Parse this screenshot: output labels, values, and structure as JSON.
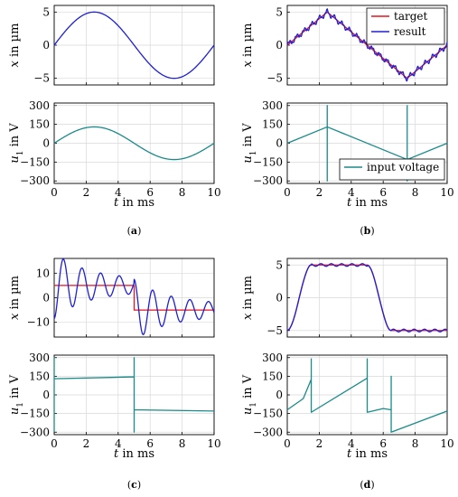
{
  "colors": {
    "blue": "#1f1fd6",
    "red": "#e8141a",
    "teal": "#1a8a8a"
  },
  "x_axis": {
    "label": "t in ms",
    "ticks": [
      "0",
      "2",
      "4",
      "6",
      "8",
      "10"
    ],
    "range": [
      0,
      10
    ]
  },
  "chart_data": [
    {
      "panel": "a",
      "caption": "(a)",
      "top": {
        "type": "line",
        "ylabel": "x in µm",
        "ylim": [
          -6,
          6
        ],
        "yticks": [
          "5",
          "0",
          "−5"
        ],
        "ytick_values": [
          5,
          0,
          -5
        ],
        "series": [
          {
            "color": "#1f1fd6",
            "shape": "sine",
            "amplitude": 5,
            "period": 10
          }
        ]
      },
      "bottom": {
        "type": "line",
        "ylabel": "u1 in V",
        "ylim": [
          -320,
          320
        ],
        "yticks": [
          "300",
          "150",
          "0",
          "−150",
          "−300"
        ],
        "ytick_values": [
          300,
          150,
          0,
          -150,
          -300
        ],
        "series": [
          {
            "color": "#1a8a8a",
            "shape": "sine",
            "amplitude": 130,
            "period": 10
          }
        ]
      }
    },
    {
      "panel": "b",
      "caption": "(b)",
      "top": {
        "type": "line",
        "ylabel": "x in µm",
        "ylim": [
          -6,
          6
        ],
        "yticks": [
          "5",
          "0",
          "−5"
        ],
        "ytick_values": [
          5,
          0,
          -5
        ],
        "legend": {
          "position": "top-right",
          "entries": [
            {
              "label": "target",
              "color": "#e8141a"
            },
            {
              "label": "result",
              "color": "#1f1fd6"
            }
          ]
        },
        "series": [
          {
            "name": "target",
            "color": "#e8141a",
            "x": [
              0,
              2.5,
              7.5,
              10
            ],
            "y": [
              0,
              5,
              -5,
              0
            ]
          },
          {
            "name": "result",
            "color": "#1f1fd6",
            "x": [
              0,
              2.5,
              7.5,
              10
            ],
            "y": [
              0,
              5,
              -5,
              0
            ],
            "ripple": 0.35
          }
        ]
      },
      "bottom": {
        "type": "line",
        "ylabel": "u1 in V",
        "ylim": [
          -320,
          320
        ],
        "yticks": [
          "300",
          "150",
          "0",
          "−150",
          "−300"
        ],
        "ytick_values": [
          300,
          150,
          0,
          -150,
          -300
        ],
        "legend": {
          "position": "bottom-right",
          "entries": [
            {
              "label": "input voltage",
              "color": "#1a8a8a"
            }
          ]
        },
        "series": [
          {
            "name": "input voltage",
            "color": "#1a8a8a",
            "x": [
              0,
              2.5,
              2.5,
              2.5,
              2.5,
              7.5,
              7.5,
              7.5,
              7.5,
              10
            ],
            "y": [
              0,
              130,
              300,
              -300,
              130,
              -130,
              300,
              -300,
              -130,
              0
            ]
          }
        ]
      }
    },
    {
      "panel": "c",
      "caption": "(c)",
      "top": {
        "type": "line",
        "ylabel": "x in µm",
        "ylim": [
          -16,
          16
        ],
        "yticks": [
          "10",
          "0",
          "−10"
        ],
        "ytick_values": [
          10,
          0,
          -10
        ],
        "series": [
          {
            "color": "#e8141a",
            "x": [
              0,
              5,
              5,
              10
            ],
            "y": [
              5,
              5,
              -5,
              -5
            ]
          },
          {
            "color": "#1f1fd6",
            "shape": "oscillation",
            "frequency": 0.86,
            "decay": 0.5,
            "start_amplitude": 11,
            "levels": [
              5,
              -5
            ],
            "step_at": 5
          }
        ]
      },
      "bottom": {
        "type": "line",
        "ylabel": "u1 in V",
        "ylim": [
          -320,
          320
        ],
        "yticks": [
          "300",
          "150",
          "0",
          "−150",
          "−300"
        ],
        "ytick_values": [
          300,
          150,
          0,
          -150,
          -300
        ],
        "series": [
          {
            "color": "#1a8a8a",
            "x": [
              0,
              0,
              0,
              5,
              5,
              5,
              5,
              10
            ],
            "y": [
              -300,
              300,
              130,
              145,
              300,
              -300,
              -120,
              -130
            ]
          }
        ]
      }
    },
    {
      "panel": "d",
      "caption": "(d)",
      "top": {
        "type": "line",
        "ylabel": "x in µm",
        "ylim": [
          -6,
          6
        ],
        "yticks": [
          "5",
          "0",
          "−5"
        ],
        "ytick_values": [
          5,
          0,
          -5
        ],
        "series": [
          {
            "color": "#e8141a",
            "x": [
              0,
              1.5,
              5,
              6.5,
              10
            ],
            "y": [
              -5,
              5,
              5,
              -5,
              -5
            ],
            "smooth": true
          },
          {
            "color": "#1f1fd6",
            "x": [
              0,
              1.5,
              5,
              6.5,
              10
            ],
            "y": [
              -5,
              5,
              5,
              -5,
              -5
            ],
            "smooth": true,
            "ripple": 0.2
          }
        ]
      },
      "bottom": {
        "type": "line",
        "ylabel": "u1 in V",
        "ylim": [
          -320,
          320
        ],
        "yticks": [
          "300",
          "150",
          "0",
          "−150",
          "−300"
        ],
        "ytick_values": [
          300,
          150,
          0,
          -150,
          -300
        ],
        "series": [
          {
            "color": "#1a8a8a",
            "x": [
              0,
              1.0,
              1.5,
              1.5,
              1.5,
              5,
              5,
              5,
              6.0,
              6.5,
              6.5,
              6.5,
              10
            ],
            "y": [
              -120,
              -30,
              125,
              290,
              -140,
              135,
              290,
              -140,
              -110,
              -120,
              150,
              -300,
              -130
            ]
          }
        ]
      }
    }
  ]
}
